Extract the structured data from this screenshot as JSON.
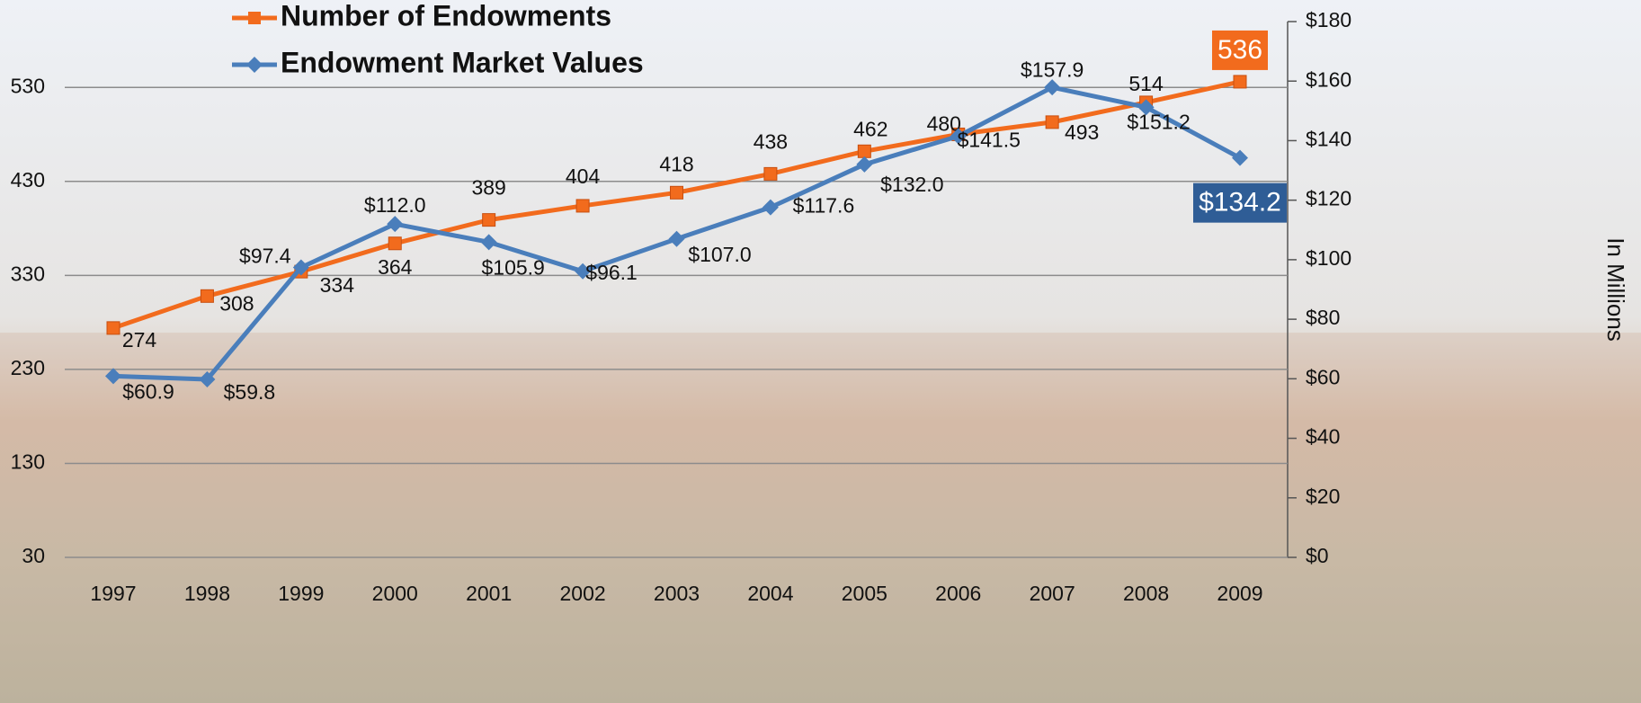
{
  "chart_data": {
    "type": "line",
    "categories": [
      "1997",
      "1998",
      "1999",
      "2000",
      "2001",
      "2002",
      "2003",
      "2004",
      "2005",
      "2006",
      "2007",
      "2008",
      "2009"
    ],
    "series": [
      {
        "name": "Number of Endowments",
        "color": "#f26b1d",
        "marker": "square",
        "values": [
          274,
          308,
          334,
          364,
          389,
          404,
          418,
          438,
          462,
          480,
          493,
          514,
          536
        ]
      },
      {
        "name": "Endowment Market Values",
        "color": "#4a7ebb",
        "marker": "diamond",
        "axis": "y2",
        "values": [
          60.9,
          59.8,
          97.4,
          112.0,
          105.9,
          96.1,
          107.0,
          117.6,
          132.0,
          141.5,
          157.9,
          151.2,
          134.2
        ],
        "value_labels": [
          "$60.9",
          "$59.8",
          "$97.4",
          "$112.0",
          "$105.9",
          "$96.1",
          "$107.0",
          "$117.6",
          "$132.0",
          "$141.5",
          "$157.9",
          "$151.2",
          "$134.2"
        ]
      }
    ],
    "ylim": [
      30,
      600
    ],
    "yticks": [
      30,
      130,
      230,
      330,
      430,
      530
    ],
    "y2lim": [
      0,
      180
    ],
    "y2ticks": [
      {
        "value": 0,
        "label": "$0"
      },
      {
        "value": 20,
        "label": "$20"
      },
      {
        "value": 40,
        "label": "$40"
      },
      {
        "value": 60,
        "label": "$60"
      },
      {
        "value": 80,
        "label": "$80"
      },
      {
        "value": 100,
        "label": "$100"
      },
      {
        "value": 120,
        "label": "$120"
      },
      {
        "value": 140,
        "label": "$140"
      },
      {
        "value": 160,
        "label": "$160"
      },
      {
        "value": 180,
        "label": "$180"
      }
    ],
    "y2label": "In Millions",
    "grid": true
  }
}
